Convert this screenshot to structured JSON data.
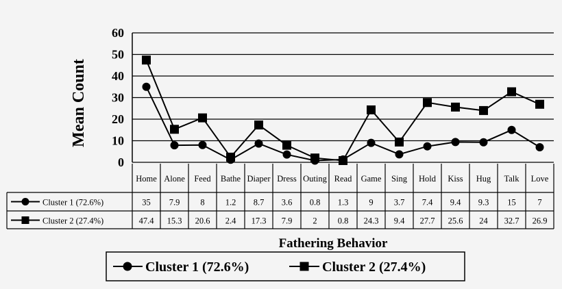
{
  "chart_data": {
    "type": "line",
    "ylabel": "Mean Count",
    "xlabel": "Fathering Behavior",
    "ylim": [
      0,
      60
    ],
    "yticks": [
      0,
      10,
      20,
      30,
      40,
      50,
      60
    ],
    "grid": true,
    "legend_position": "bottom",
    "categories": [
      "Home",
      "Alone",
      "Feed",
      "Bathe",
      "Diaper",
      "Dress",
      "Outing",
      "Read",
      "Game",
      "Sing",
      "Hold",
      "Kiss",
      "Hug",
      "Talk",
      "Love"
    ],
    "series": [
      {
        "name": "Cluster 1 (72.6%)",
        "marker": "circle",
        "values": [
          35,
          7.9,
          8,
          1.2,
          8.7,
          3.6,
          0.8,
          1.3,
          9,
          3.7,
          7.4,
          9.4,
          9.3,
          15,
          7
        ]
      },
      {
        "name": "Cluster 2 (27.4%)",
        "marker": "square",
        "values": [
          47.4,
          15.3,
          20.6,
          2.4,
          17.3,
          7.9,
          2,
          0.8,
          24.3,
          9.4,
          27.7,
          25.6,
          24,
          32.7,
          26.9
        ]
      }
    ],
    "legend": [
      "Cluster 1 (72.6%)",
      "Cluster 2 (27.4%)"
    ]
  }
}
